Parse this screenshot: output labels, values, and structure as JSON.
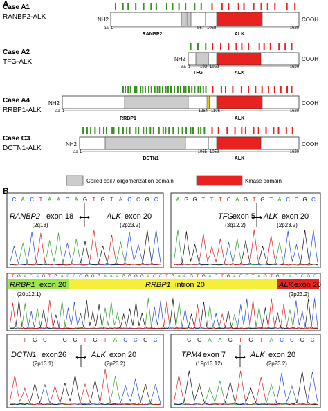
{
  "panel_a": {
    "letter": "A",
    "cases": [
      {
        "id": "A1",
        "title": "Case A1",
        "fusion": "RANBP2-ALK",
        "n_term": "NH2",
        "c_term": "COOH",
        "aa_start_label": "aa",
        "aa_start": "1",
        "partner_junction": "867",
        "alk_start": "1058",
        "aa_end": "1620",
        "partner_label": "RANBP2",
        "alk_label": "ALK"
      },
      {
        "id": "A2",
        "title": "Case A2",
        "fusion": "TFG-ALK",
        "n_term": "NH2",
        "c_term": "COOH",
        "aa_start_label": "aa",
        "aa_start": "1",
        "partner_junction": "193",
        "alk_start": "1058",
        "aa_end": "1620",
        "partner_label": "TFG",
        "alk_label": "ALK"
      },
      {
        "id": "A4",
        "title": "Case A4",
        "fusion": "RRBP1-ALK",
        "n_term": "NH2",
        "c_term": "COOH",
        "aa_start_label": "aa",
        "aa_start": "1",
        "partner_junction": "1264",
        "alk_start": "1106",
        "aa_end": "1620",
        "partner_label": "RRBP1",
        "alk_label": "ALK"
      },
      {
        "id": "C3",
        "title": "Case C3",
        "fusion": "DCTN1-ALK",
        "n_term": "NH2",
        "c_term": "COOH",
        "aa_start_label": "aa",
        "aa_start": "1",
        "partner_junction": "1065",
        "alk_start": "1058",
        "aa_end": "1620",
        "partner_label": "DCTN1",
        "alk_label": "ALK"
      }
    ],
    "legend": {
      "coiled_coil": "Coiled coil / oligomerization domain",
      "kinase": "Kinase domain"
    },
    "colors": {
      "coiled_coil": "#cccccc",
      "kinase": "#e8231f",
      "green_marks": "#3a8f22",
      "red_marks": "#e8231f",
      "junction_yellow": "#f2c21a"
    }
  },
  "panel_b": {
    "letter": "B",
    "chromatograms": [
      {
        "id": "ranbp2",
        "sequence": [
          "C",
          "A",
          "C",
          "T",
          "A",
          "A",
          "C",
          "A",
          "G",
          "T",
          "G",
          "T",
          "A",
          "C",
          "C",
          "G",
          "C"
        ],
        "gene_left": "RANBP2",
        "exon_left": "exon 18",
        "band_left": "(2q13)",
        "gene_right": "ALK",
        "exon_right": "exon 20",
        "band_right": "(2p23.2)"
      },
      {
        "id": "tfg",
        "sequence": [
          "A",
          "G",
          "G",
          "T",
          "T",
          "T",
          "C",
          "A",
          "G",
          "T",
          "G",
          "T",
          "A",
          "C",
          "C",
          "G",
          "C"
        ],
        "gene_left": "TFG",
        "exon_left": "exon 5",
        "band_left": "(3q12.2)",
        "gene_right": "ALK",
        "exon_right": "exon 20",
        "band_right": "(2p23.2)"
      },
      {
        "id": "rrbp1",
        "sequence": [
          "T",
          "G",
          "A",
          "C",
          "A",
          "G",
          "T",
          "G",
          "A",
          "C",
          "C",
          "C",
          "G",
          "G",
          "G",
          "A",
          "A",
          "A",
          "G",
          "G",
          "G",
          "G",
          "A",
          "C",
          "C",
          "T",
          "G",
          "A",
          "C",
          "G",
          "T",
          "G",
          "A",
          "C",
          "T",
          "G",
          "A",
          "C",
          "C",
          "T",
          "A",
          "G",
          "T",
          "G",
          "T",
          "A",
          "C",
          "C",
          "G",
          "C"
        ],
        "seg_left_gene": "RRBP1",
        "seg_left_exon": "exon 20",
        "band_left": "(20p12.1)",
        "seg_mid_gene": "RRBP1",
        "seg_mid_exon": "intron 20",
        "seg_right_gene": "ALK",
        "seg_right_exon": "exon 20",
        "band_right": "(2p23.2)"
      },
      {
        "id": "dctn1",
        "sequence": [
          "T",
          "T",
          "G",
          "C",
          "T",
          "G",
          "G",
          "T",
          "G",
          "T",
          "A",
          "C",
          "C",
          "G",
          "C"
        ],
        "gene_left": "DCTN1",
        "exon_left": "exon26",
        "band_left": "(2p13.1)",
        "gene_right": "ALK",
        "exon_right": "exon 20",
        "band_right": "(2p23.2)"
      },
      {
        "id": "tpm4",
        "sequence": [
          "T",
          "G",
          "G",
          "A",
          "A",
          "G",
          "T",
          "G",
          "T",
          "A",
          "C",
          "C",
          "G",
          "C"
        ],
        "gene_left": "TPM4",
        "exon_left": "exon 7",
        "band_left": "(19p13.12)",
        "gene_right": "ALK",
        "exon_right": "exon 20",
        "band_right": "(2p23.2)"
      }
    ],
    "colors": {
      "A": "#2e9e2e",
      "C": "#1f49d6",
      "G": "#111111",
      "T": "#e02020",
      "seg_left": "#9ce64a",
      "seg_mid": "#f5ee3a",
      "seg_right": "#e8231f"
    }
  }
}
